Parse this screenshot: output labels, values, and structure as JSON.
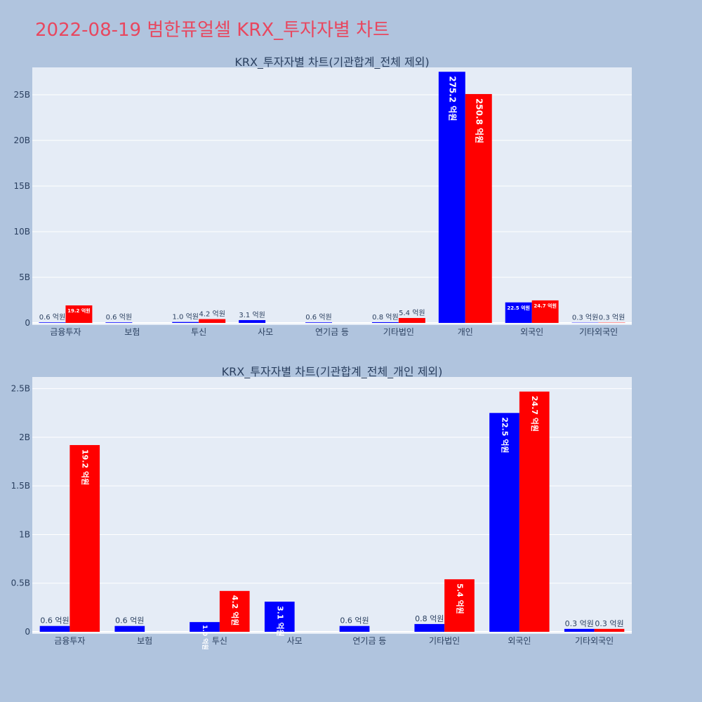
{
  "page": {
    "title": "2022-08-19 범한퓨얼셀 KRX_투자자별 차트"
  },
  "colors": {
    "background": "#b0c4de",
    "plot_bg": "#e5ecf6",
    "title": "#e8475f",
    "series_buy": "#0000ff",
    "series_sell": "#ff0000"
  },
  "chart_data": [
    {
      "type": "bar",
      "title": "KRX_투자자별 차트(기관합계_전체 제외)",
      "xlabel": "",
      "ylabel": "",
      "categories": [
        "금융투자",
        "보험",
        "투신",
        "사모",
        "연기금 등",
        "기타법인",
        "개인",
        "외국인",
        "기타외국인"
      ],
      "series": [
        {
          "color": "#0000ff",
          "values": [
            60000000,
            60000000,
            100000000,
            310000000,
            60000000,
            80000000,
            27520000000,
            2250000000,
            30000000
          ],
          "labels": [
            "0.6 억원",
            "0.6 억원",
            "1.0 억원",
            "3.1 억원",
            "0.6 억원",
            "0.8 억원",
            "275.2 억원",
            "22.5 억원",
            "0.3 억원"
          ]
        },
        {
          "color": "#ff0000",
          "values": [
            1920000000,
            0,
            420000000,
            0,
            0,
            540000000,
            25080000000,
            2470000000,
            30000000
          ],
          "labels": [
            "19.2 억원",
            "",
            "4.2 억원",
            "",
            "",
            "5.4 억원",
            "250.8 억원",
            "24.7 억원",
            "0.3 억원"
          ]
        }
      ],
      "ylim": [
        0,
        28000000000
      ],
      "yticks": [
        0,
        5000000000,
        10000000000,
        15000000000,
        20000000000,
        25000000000
      ],
      "ytick_labels": [
        "0",
        "5B",
        "10B",
        "15B",
        "20B",
        "25B"
      ],
      "grid": true
    },
    {
      "type": "bar",
      "title": "KRX_투자자별 차트(기관합계_전체_개인 제외)",
      "xlabel": "",
      "ylabel": "",
      "categories": [
        "금융투자",
        "보험",
        "투신",
        "사모",
        "연기금 등",
        "기타법인",
        "외국인",
        "기타외국인"
      ],
      "series": [
        {
          "color": "#0000ff",
          "values": [
            60000000,
            60000000,
            100000000,
            310000000,
            60000000,
            80000000,
            2250000000,
            30000000
          ],
          "labels": [
            "0.6 억원",
            "0.6 억원",
            "1.0 억원",
            "3.1 억원",
            "0.6 억원",
            "0.8 억원",
            "22.5 억원",
            "0.3 억원"
          ]
        },
        {
          "color": "#ff0000",
          "values": [
            1920000000,
            0,
            420000000,
            0,
            0,
            540000000,
            2470000000,
            30000000
          ],
          "labels": [
            "19.2 억원",
            "",
            "4.2 억원",
            "",
            "",
            "5.4 억원",
            "24.7 억원",
            "0.3 억원"
          ]
        }
      ],
      "ylim": [
        0,
        2620000000
      ],
      "yticks": [
        0,
        500000000,
        1000000000,
        1500000000,
        2000000000,
        2500000000
      ],
      "ytick_labels": [
        "0",
        "0.5B",
        "1B",
        "1.5B",
        "2B",
        "2.5B"
      ],
      "grid": true
    }
  ]
}
